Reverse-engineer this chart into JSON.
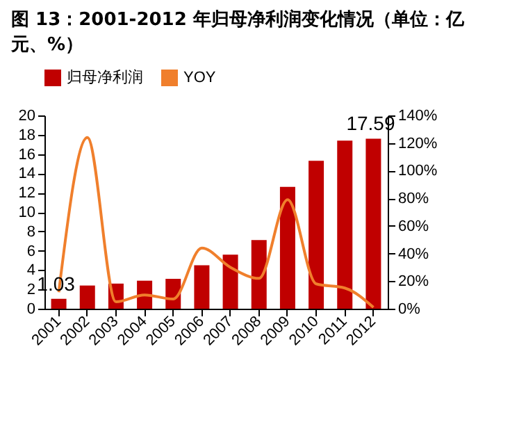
{
  "chart_data": {
    "type": "bar",
    "title": "图 13：2001-2012 年归母净利润变化情况（单位：亿元、%）",
    "categories": [
      "2001",
      "2002",
      "2003",
      "2004",
      "2005",
      "2006",
      "2007",
      "2008",
      "2009",
      "2010",
      "2011",
      "2012"
    ],
    "series": [
      {
        "name": "归母净利润",
        "color": "#c00000",
        "values": [
          1.03,
          2.4,
          2.6,
          2.9,
          3.1,
          4.5,
          5.6,
          7.1,
          12.6,
          15.3,
          17.4,
          17.59
        ],
        "value_labels": [
          "1.03",
          null,
          null,
          null,
          null,
          null,
          null,
          null,
          null,
          null,
          null,
          "17.59"
        ]
      },
      {
        "name": "YOY",
        "type": "line",
        "axis": "y2",
        "color": "#f07f2c",
        "values": [
          12,
          124,
          5,
          10,
          7,
          44,
          30,
          22,
          79,
          18,
          15,
          1
        ]
      }
    ],
    "ylim": [
      0,
      20
    ],
    "yticks": [
      0,
      2,
      4,
      6,
      8,
      10,
      12,
      14,
      16,
      18,
      20
    ],
    "y2lim": [
      0,
      140
    ],
    "y2ticks": [
      {
        "value": 0,
        "label": "0%"
      },
      {
        "value": 20,
        "label": "20%"
      },
      {
        "value": 40,
        "label": "40%"
      },
      {
        "value": 60,
        "label": "60%"
      },
      {
        "value": 80,
        "label": "80%"
      },
      {
        "value": 100,
        "label": "100%"
      },
      {
        "value": 120,
        "label": "120%"
      },
      {
        "value": 140,
        "label": "140%"
      }
    ],
    "legend": "top",
    "grid": false
  }
}
